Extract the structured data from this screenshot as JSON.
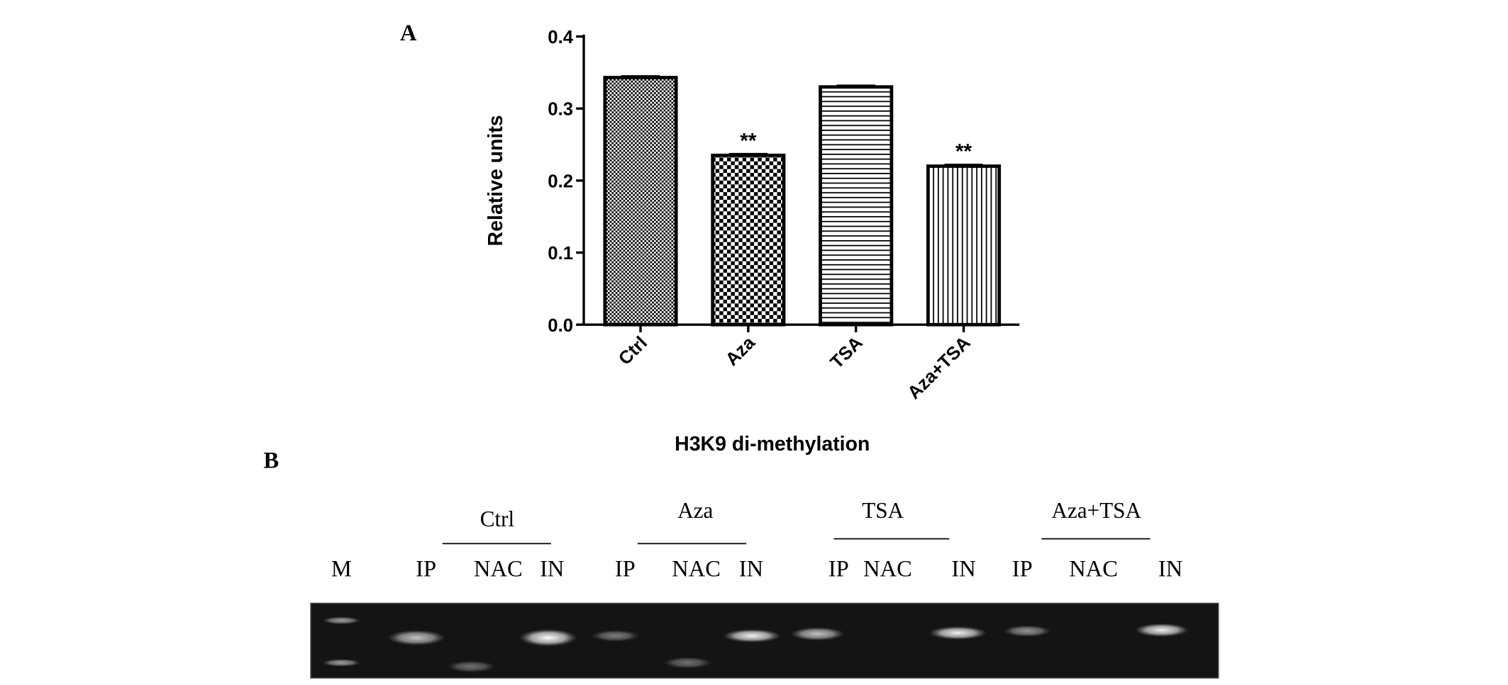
{
  "panel_labels": [
    "A",
    "B"
  ],
  "chart_data": {
    "type": "bar",
    "x_label": "H3K9 di-methylation",
    "y_label": "Relative units",
    "categories": [
      "Ctrl",
      "Aza",
      "TSA",
      "Aza+TSA"
    ],
    "values": [
      0.343,
      0.235,
      0.33,
      0.22
    ],
    "errors": [
      0.002,
      0.002,
      0.002,
      0.002
    ],
    "significance": [
      null,
      "**",
      null,
      "**"
    ],
    "color": "#000000",
    "ylim": [
      0,
      0.4
    ],
    "yticks": [
      {
        "value": 0,
        "label": "0.0"
      },
      0.1,
      0.2,
      0.3,
      0.4
    ],
    "grid": false
  },
  "gel": {
    "marker": "M",
    "groups": [
      {
        "label": "Ctrl",
        "lanes": [
          "IP",
          "NAC",
          "IN"
        ]
      },
      {
        "label": "Aza",
        "lanes": [
          "IP",
          "NAC",
          "IN"
        ]
      },
      {
        "label": "TSA",
        "lanes": [
          "IP",
          "NAC",
          "IN"
        ]
      },
      {
        "label": "Aza+TSA",
        "lanes": [
          "IP",
          "NAC",
          "IN"
        ]
      }
    ]
  }
}
